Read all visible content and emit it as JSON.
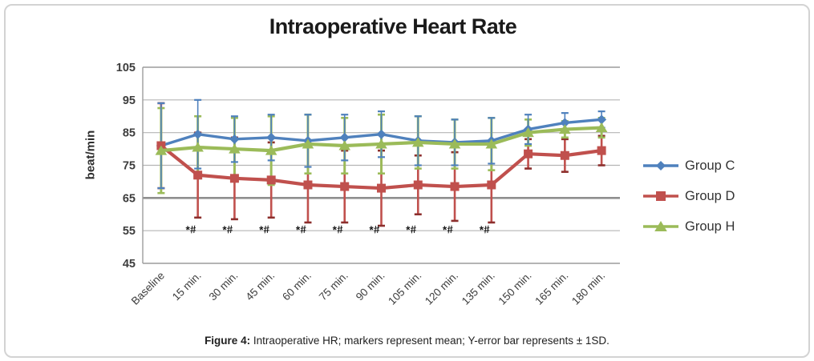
{
  "figure": {
    "title": "Intraoperative Heart Rate",
    "y_axis_label": "beat/min",
    "caption_prefix": "Figure 4:",
    "caption_text": " Intraoperative HR; markers represent mean; Y-error bar represents ± 1SD."
  },
  "chart_data": {
    "type": "line",
    "title": "Intraoperative Heart Rate",
    "xlabel": "",
    "ylabel": "beat/min",
    "ylim": [
      45,
      105
    ],
    "yticks": [
      45,
      55,
      65,
      75,
      85,
      95,
      105
    ],
    "grid": true,
    "emphasized_gridline": 65,
    "legend_position": "right",
    "error_bar_meaning": "± 1SD",
    "categories": [
      "Baseline",
      "15 min.",
      "30 min.",
      "45 min.",
      "60 min.",
      "75 min.",
      "90 min.",
      "105 min.",
      "120 min.",
      "135 min.",
      "150 min.",
      "165 min.",
      "180 min."
    ],
    "series": [
      {
        "name": "Group C",
        "marker": "diamond",
        "color": "#4f81bd",
        "cap_color": "#4f81bd",
        "values": [
          81,
          84.5,
          83,
          83.5,
          82.5,
          83.5,
          84.5,
          82.5,
          82,
          82.5,
          86,
          88,
          89
        ],
        "sd": [
          13,
          10.5,
          7,
          7,
          8,
          7,
          7,
          7.5,
          7,
          7,
          4.5,
          3,
          2.5
        ]
      },
      {
        "name": "Group D",
        "marker": "square",
        "color": "#c0504d",
        "cap_color": "#8c2f2d",
        "values": [
          81,
          72,
          71,
          70.5,
          69,
          68.5,
          68,
          69,
          68.5,
          69,
          78.5,
          78,
          79.5
        ],
        "sd": [
          13,
          13,
          12.5,
          11.5,
          11.5,
          11,
          11.5,
          9,
          10.5,
          11.5,
          4.5,
          5,
          4.5
        ]
      },
      {
        "name": "Group H",
        "marker": "triangle",
        "color": "#9bbb59",
        "cap_color": "#9bbb59",
        "values": [
          79.5,
          80.5,
          80,
          79.5,
          81.5,
          81,
          81.5,
          82,
          81.5,
          81.5,
          85,
          86,
          86.5
        ],
        "sd": [
          13,
          9.5,
          9.5,
          10.5,
          9,
          8.5,
          9,
          8,
          7.5,
          8,
          4,
          2.5,
          3
        ]
      }
    ],
    "annotations": {
      "text": "*#",
      "y": 55.2,
      "categories": [
        "15 min.",
        "30 min.",
        "45 min.",
        "60 min.",
        "75 min.",
        "90 min.",
        "105 min.",
        "120 min.",
        "135 min."
      ]
    }
  }
}
